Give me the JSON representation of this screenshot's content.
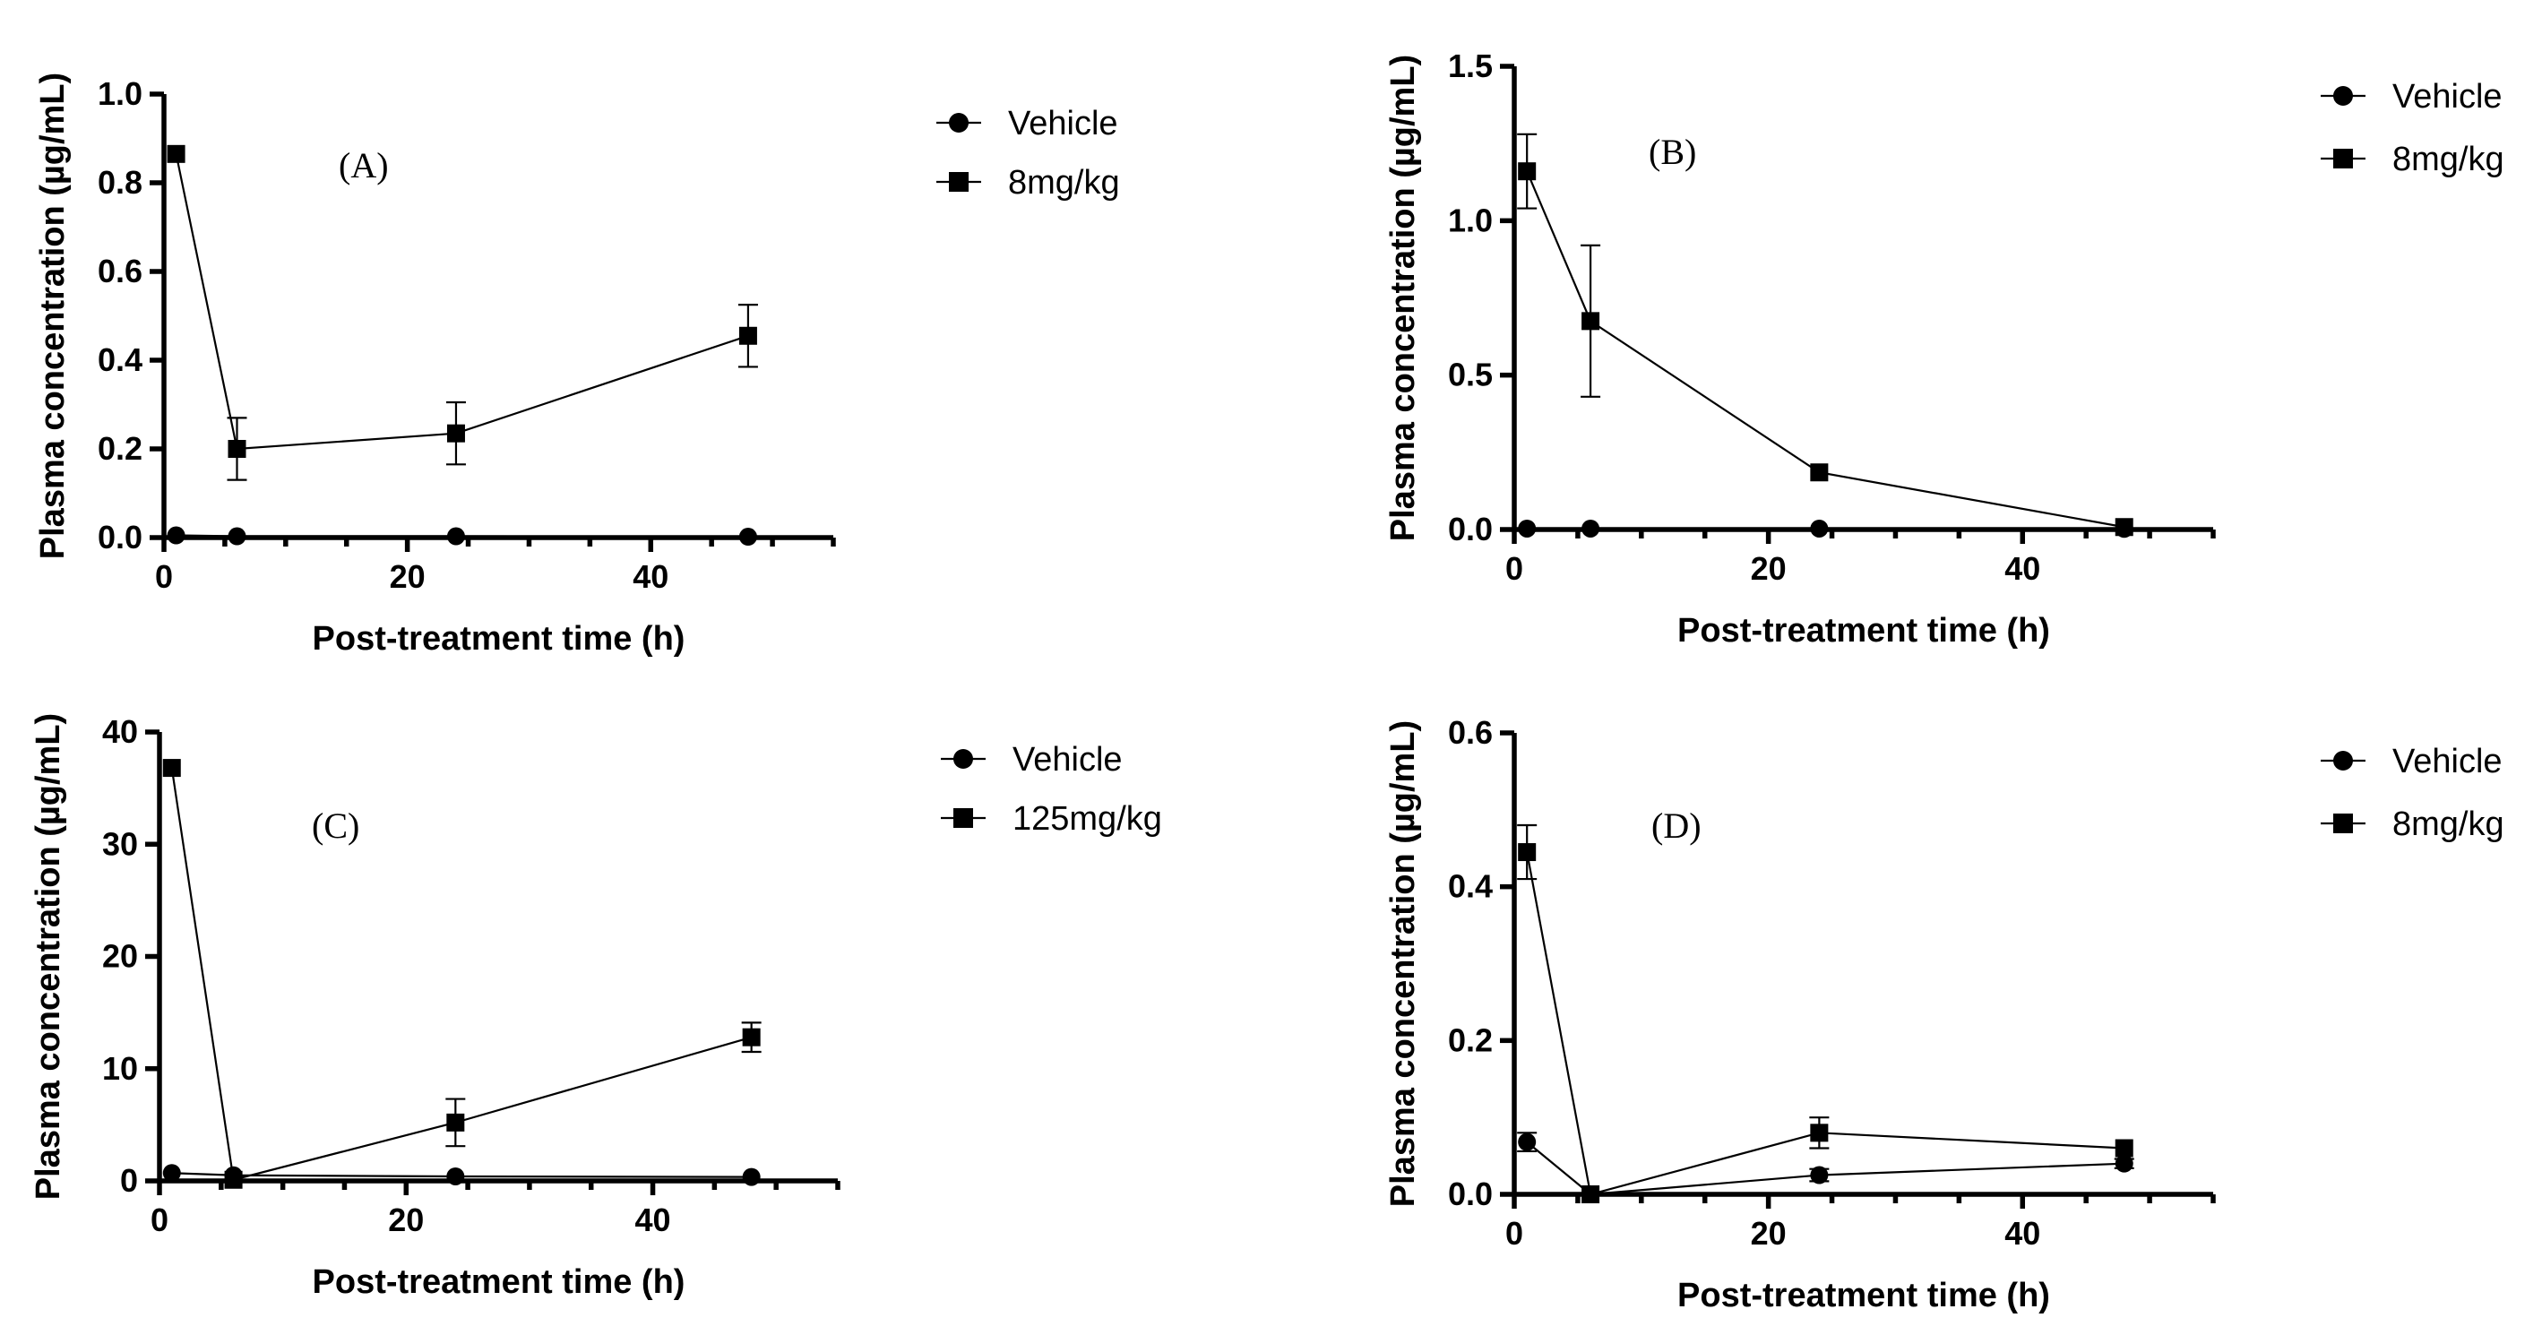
{
  "chart_data": [
    {
      "id": "A",
      "type": "line",
      "panel_label": "(A)",
      "xlabel": "Post-treatment time (h)",
      "ylabel": "Plasma concentration (µg/mL)",
      "xlim": [
        0,
        55
      ],
      "ylim": [
        0,
        1.0
      ],
      "xticks": [
        0,
        20,
        40
      ],
      "xtick_labels": [
        "0",
        "20",
        "40"
      ],
      "yticks": [
        0,
        0.2,
        0.4,
        0.6,
        0.8,
        1.0
      ],
      "ytick_labels": [
        "0.0",
        "0.2",
        "0.4",
        "0.6",
        "0.8",
        "1.0"
      ],
      "legend_position": "top-right-outside",
      "series": [
        {
          "name": "Vehicle",
          "marker": "circle",
          "x": [
            1,
            6,
            24,
            48
          ],
          "y": [
            0.005,
            0.003,
            0.003,
            0.002
          ],
          "err": [
            0,
            0,
            0,
            0
          ]
        },
        {
          "name": "8mg/kg",
          "marker": "square",
          "x": [
            1,
            6,
            24,
            48
          ],
          "y": [
            0.865,
            0.2,
            0.235,
            0.455
          ],
          "err": [
            0,
            0.07,
            0.07,
            0.07
          ]
        }
      ]
    },
    {
      "id": "B",
      "type": "line",
      "panel_label": "(B)",
      "xlabel": "Post-treatment time (h)",
      "ylabel": "Plasma concentration (µg/mL)",
      "xlim": [
        0,
        55
      ],
      "ylim": [
        0,
        1.5
      ],
      "xticks": [
        0,
        20,
        40
      ],
      "xtick_labels": [
        "0",
        "20",
        "40"
      ],
      "yticks": [
        0,
        0.5,
        1.0,
        1.5
      ],
      "ytick_labels": [
        "0.0",
        "0.5",
        "1.0",
        "1.5"
      ],
      "legend_position": "top-right-outside",
      "series": [
        {
          "name": "Vehicle",
          "marker": "circle",
          "x": [
            1,
            6,
            24,
            48
          ],
          "y": [
            0.003,
            0.003,
            0.003,
            0.002
          ],
          "err": [
            0,
            0,
            0,
            0
          ]
        },
        {
          "name": "8mg/kg",
          "marker": "square",
          "x": [
            1,
            6,
            24,
            48
          ],
          "y": [
            1.16,
            0.675,
            0.185,
            0.008
          ],
          "err": [
            0.12,
            0.245,
            0,
            0
          ]
        }
      ]
    },
    {
      "id": "C",
      "type": "line",
      "panel_label": "(C)",
      "xlabel": "Post-treatment time (h)",
      "ylabel": "Plasma concentration (µg/mL)",
      "xlim": [
        0,
        55
      ],
      "ylim": [
        0,
        40
      ],
      "xticks": [
        0,
        20,
        40
      ],
      "xtick_labels": [
        "0",
        "20",
        "40"
      ],
      "yticks": [
        0,
        10,
        20,
        30,
        40
      ],
      "ytick_labels": [
        "0",
        "10",
        "20",
        "30",
        "40"
      ],
      "legend_position": "top-right-outside",
      "series": [
        {
          "name": "Vehicle",
          "marker": "circle",
          "x": [
            1,
            6,
            24,
            48
          ],
          "y": [
            0.7,
            0.5,
            0.4,
            0.35
          ],
          "err": [
            0,
            0,
            0,
            0
          ]
        },
        {
          "name": "125mg/kg",
          "marker": "square",
          "x": [
            1,
            6,
            24,
            48
          ],
          "y": [
            36.8,
            0.1,
            5.2,
            12.8
          ],
          "err": [
            0,
            0,
            2.1,
            1.3
          ]
        }
      ]
    },
    {
      "id": "D",
      "type": "line",
      "panel_label": "(D)",
      "xlabel": "Post-treatment time (h)",
      "ylabel": "Plasma concentration (µg/mL)",
      "xlim": [
        0,
        55
      ],
      "ylim": [
        0,
        0.6
      ],
      "xticks": [
        0,
        20,
        40
      ],
      "xtick_labels": [
        "0",
        "20",
        "40"
      ],
      "yticks": [
        0,
        0.2,
        0.4,
        0.6
      ],
      "ytick_labels": [
        "0.0",
        "0.2",
        "0.4",
        "0.6"
      ],
      "legend_position": "top-right-outside",
      "series": [
        {
          "name": "Vehicle",
          "marker": "circle",
          "x": [
            1,
            6,
            24,
            48
          ],
          "y": [
            0.068,
            0.0,
            0.025,
            0.04
          ],
          "err": [
            0.012,
            0,
            0.008,
            0.006
          ]
        },
        {
          "name": "8mg/kg",
          "marker": "square",
          "x": [
            1,
            6,
            24,
            48
          ],
          "y": [
            0.445,
            0.0,
            0.08,
            0.06
          ],
          "err": [
            0.035,
            0,
            0.02,
            0
          ]
        }
      ]
    }
  ]
}
